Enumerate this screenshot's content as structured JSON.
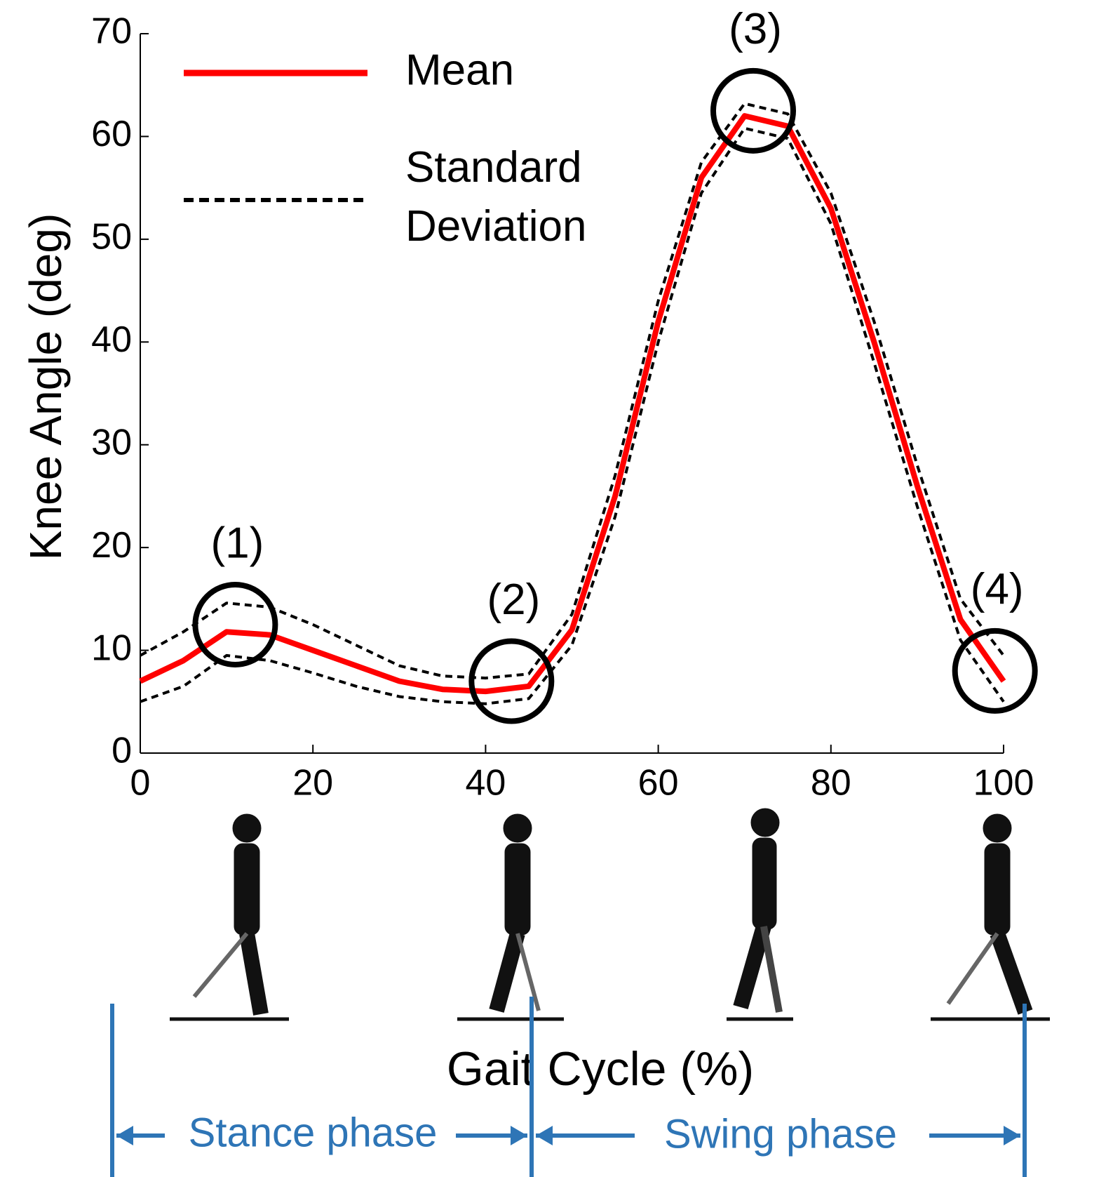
{
  "chart_data": {
    "type": "line",
    "x_label": "Gait Cycle (%)",
    "y_label": "Knee Angle (deg)",
    "x": [
      0,
      5,
      10,
      15,
      20,
      25,
      30,
      35,
      40,
      45,
      50,
      55,
      60,
      65,
      70,
      75,
      80,
      85,
      90,
      95,
      100
    ],
    "series": [
      {
        "name": "Mean",
        "color": "#ff0000",
        "style": "solid",
        "values": [
          7,
          9,
          11.8,
          11.5,
          10,
          8.5,
          7,
          6.2,
          6,
          6.5,
          12,
          25,
          42,
          56,
          62,
          61,
          53,
          40,
          26,
          13,
          7
        ]
      },
      {
        "name": "Standard Deviation",
        "color": "#000000",
        "style": "dashed",
        "upper": [
          9.5,
          11.8,
          14.6,
          14.2,
          12.5,
          10.5,
          8.5,
          7.5,
          7.3,
          7.7,
          13.5,
          27,
          44,
          57.5,
          63.2,
          62.2,
          54.5,
          42,
          28,
          15,
          9.5
        ],
        "lower": [
          5,
          6.5,
          9.5,
          9,
          7.8,
          6.5,
          5.5,
          5,
          4.8,
          5.3,
          10.5,
          23,
          40,
          54.5,
          60.8,
          59.8,
          51.5,
          38,
          24,
          11,
          5
        ]
      }
    ],
    "annotations": [
      {
        "label": "(1)",
        "x": 11,
        "y": 12.5
      },
      {
        "label": "(2)",
        "x": 43,
        "y": 7
      },
      {
        "label": "(3)",
        "x": 71,
        "y": 62.5
      },
      {
        "label": "(4)",
        "x": 99,
        "y": 8
      }
    ],
    "phases": [
      "Stance phase",
      "Swing phase"
    ],
    "xlim": [
      0,
      100
    ],
    "xticks": [
      0,
      20,
      40,
      60,
      80,
      100
    ],
    "ylim": [
      0,
      70
    ],
    "yticks": [
      0,
      10,
      20,
      30,
      40,
      50,
      60,
      70
    ],
    "grid": false
  }
}
